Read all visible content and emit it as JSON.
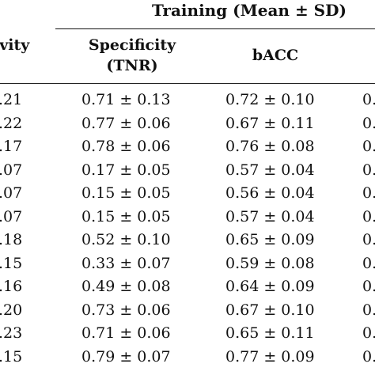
{
  "table": {
    "group_header": "Training (Mean ± SD)",
    "columns": [
      {
        "id": "sensitivity",
        "line1": "ivity",
        "line2": ")"
      },
      {
        "id": "specificity",
        "line1": "Specificity",
        "line2": "(TNR)"
      },
      {
        "id": "bacc",
        "line1": "bACC",
        "line2": ""
      },
      {
        "id": "next",
        "line1": "",
        "line2": ""
      }
    ],
    "rows": [
      {
        "sensitivity": ".21",
        "specificity": "0.71 ± 0.13",
        "bacc": "0.72 ± 0.10",
        "next": "0."
      },
      {
        "sensitivity": ".22",
        "specificity": "0.77 ± 0.06",
        "bacc": "0.67 ± 0.11",
        "next": "0."
      },
      {
        "sensitivity": ".17",
        "specificity": "0.78 ± 0.06",
        "bacc": "0.76 ± 0.08",
        "next": "0."
      },
      {
        "sensitivity": ".07",
        "specificity": "0.17 ± 0.05",
        "bacc": "0.57 ± 0.04",
        "next": "0."
      },
      {
        "sensitivity": ".07",
        "specificity": "0.15 ± 0.05",
        "bacc": "0.56 ± 0.04",
        "next": "0."
      },
      {
        "sensitivity": ".07",
        "specificity": "0.15 ± 0.05",
        "bacc": "0.57 ± 0.04",
        "next": "0."
      },
      {
        "sensitivity": ".18",
        "specificity": "0.52 ± 0.10",
        "bacc": "0.65 ± 0.09",
        "next": "0."
      },
      {
        "sensitivity": ".15",
        "specificity": "0.33 ± 0.07",
        "bacc": "0.59 ± 0.08",
        "next": "0."
      },
      {
        "sensitivity": ".16",
        "specificity": "0.49 ± 0.08",
        "bacc": "0.64 ± 0.09",
        "next": "0."
      },
      {
        "sensitivity": ".20",
        "specificity": "0.73 ± 0.06",
        "bacc": "0.67 ± 0.10",
        "next": "0."
      },
      {
        "sensitivity": ".23",
        "specificity": "0.71 ± 0.06",
        "bacc": "0.65 ± 0.11",
        "next": "0."
      },
      {
        "sensitivity": ".15",
        "specificity": "0.79 ± 0.07",
        "bacc": "0.77 ± 0.09",
        "next": "0."
      }
    ]
  }
}
